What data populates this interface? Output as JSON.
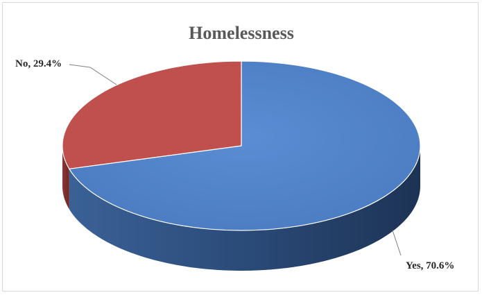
{
  "chart_data": {
    "type": "pie",
    "title": "Homelessness",
    "slices": [
      {
        "label": "Yes",
        "value": 70.6,
        "data_label": "Yes, 70.6%",
        "color": "#4f81c7"
      },
      {
        "label": "No",
        "value": 29.4,
        "data_label": "No, 29.4%",
        "color": "#c0504d"
      }
    ],
    "style": "3d"
  }
}
